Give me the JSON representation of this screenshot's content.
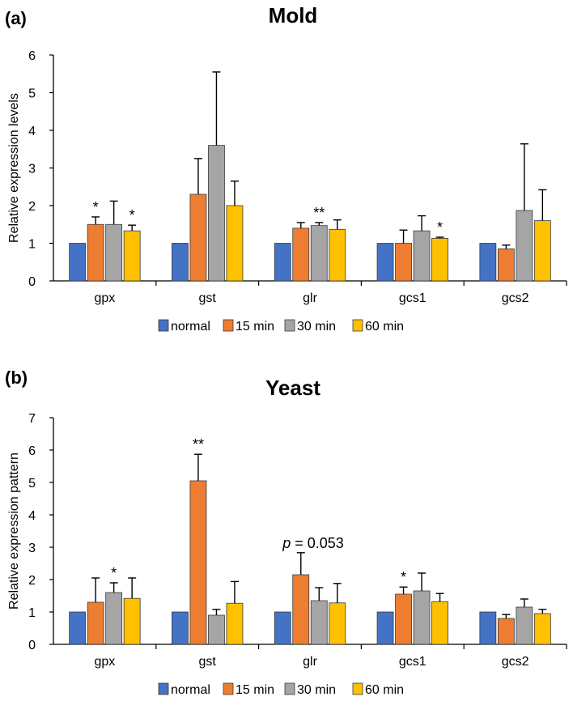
{
  "colors": {
    "normal": "#4472c4",
    "15 min": "#ed7d31",
    "30 min": "#a5a5a5",
    "60 min": "#ffc000"
  },
  "chart_data": [
    {
      "type": "bar",
      "panel": "(a)",
      "title": "Mold",
      "ylabel": "Relative  expression  levels",
      "xlabel": "",
      "ylim": [
        0,
        6
      ],
      "yticks": [
        "0",
        "1",
        "2",
        "3",
        "4",
        "5",
        "6"
      ],
      "categories": [
        "gpx",
        "gst",
        "glr",
        "gcs1",
        "gcs2"
      ],
      "series": [
        {
          "name": "normal",
          "values": [
            1,
            1,
            1,
            1,
            1
          ],
          "errors": [
            0,
            0,
            0,
            0,
            0
          ]
        },
        {
          "name": "15 min",
          "values": [
            1.5,
            2.3,
            1.4,
            1.0,
            0.85
          ],
          "errors": [
            0.2,
            0.95,
            0.15,
            0.35,
            0.1
          ]
        },
        {
          "name": "30 min",
          "values": [
            1.5,
            3.6,
            1.47,
            1.33,
            1.87
          ],
          "errors": [
            0.62,
            1.95,
            0.08,
            0.4,
            1.77
          ]
        },
        {
          "name": "60 min",
          "values": [
            1.33,
            2.0,
            1.37,
            1.13,
            1.6
          ],
          "errors": [
            0.15,
            0.65,
            0.25,
            0.03,
            0.82
          ]
        }
      ],
      "annotations": [
        {
          "category": "gpx",
          "series": "15 min",
          "text": "*"
        },
        {
          "category": "gpx",
          "series": "60 min",
          "text": "*"
        },
        {
          "category": "glr",
          "series": "30 min",
          "text": "**"
        },
        {
          "category": "gcs1",
          "series": "60 min",
          "text": "*"
        }
      ],
      "legend": [
        "normal",
        "15 min",
        "30 min",
        "60 min"
      ],
      "legend_position": "bottom"
    },
    {
      "type": "bar",
      "panel": "(b)",
      "title": "Yeast",
      "ylabel": "Relative  expression  pattern",
      "xlabel": "",
      "ylim": [
        0,
        7
      ],
      "yticks": [
        "0",
        "1",
        "2",
        "3",
        "4",
        "5",
        "6",
        "7"
      ],
      "categories": [
        "gpx",
        "gst",
        "glr",
        "gcs1",
        "gcs2"
      ],
      "series": [
        {
          "name": "normal",
          "values": [
            1,
            1,
            1,
            1,
            1
          ],
          "errors": [
            0,
            0,
            0,
            0,
            0
          ]
        },
        {
          "name": "15 min",
          "values": [
            1.3,
            5.05,
            2.15,
            1.55,
            0.8
          ],
          "errors": [
            0.75,
            0.82,
            0.68,
            0.22,
            0.12
          ]
        },
        {
          "name": "30 min",
          "values": [
            1.6,
            0.9,
            1.35,
            1.65,
            1.15
          ],
          "errors": [
            0.3,
            0.18,
            0.4,
            0.55,
            0.25
          ]
        },
        {
          "name": "60 min",
          "values": [
            1.42,
            1.27,
            1.28,
            1.32,
            0.95
          ],
          "errors": [
            0.63,
            0.67,
            0.6,
            0.25,
            0.13
          ]
        }
      ],
      "annotations": [
        {
          "category": "gpx",
          "series": "30 min",
          "text": "*"
        },
        {
          "category": "gst",
          "series": "15 min",
          "text": "**"
        },
        {
          "category": "gcs1",
          "series": "15 min",
          "text": "*"
        }
      ],
      "note": {
        "italic": "p",
        "rest": " = 0.053",
        "category": "glr"
      },
      "legend": [
        "normal",
        "15 min",
        "30 min",
        "60 min"
      ],
      "legend_position": "bottom"
    }
  ]
}
